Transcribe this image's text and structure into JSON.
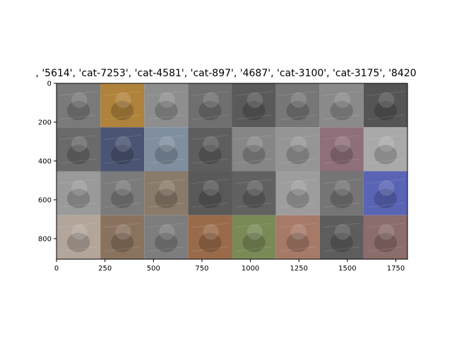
{
  "chart_data": {
    "type": "image_grid",
    "title": ", '5614', 'cat-7253', 'cat-4581', 'cat-897', '4687', 'cat-3100', 'cat-3175', '8420",
    "xlabel": "",
    "ylabel": "",
    "xlim": [
      0,
      1810
    ],
    "ylim": [
      906,
      0
    ],
    "xticks": [
      0,
      250,
      500,
      750,
      1000,
      1250,
      1500,
      1750
    ],
    "yticks": [
      0,
      200,
      400,
      600,
      800
    ],
    "grid": false,
    "rows": 4,
    "cols": 8,
    "tiles": [
      {
        "subject": "cat",
        "tone": "#7a7a7a"
      },
      {
        "subject": "cat",
        "tone": "#b0833c"
      },
      {
        "subject": "dog",
        "tone": "#8e8e8e"
      },
      {
        "subject": "cat",
        "tone": "#6f6f6f"
      },
      {
        "subject": "dog",
        "tone": "#5a5a5a"
      },
      {
        "subject": "cat",
        "tone": "#777777"
      },
      {
        "subject": "dog",
        "tone": "#8a8a8a"
      },
      {
        "subject": "cat",
        "tone": "#555555"
      },
      {
        "subject": "dog",
        "tone": "#6a6a6a"
      },
      {
        "subject": "dog",
        "tone": "#4b5573"
      },
      {
        "subject": "cat",
        "tone": "#7f8fa0"
      },
      {
        "subject": "dog",
        "tone": "#5e5e5e"
      },
      {
        "subject": "cat",
        "tone": "#868686"
      },
      {
        "subject": "cat",
        "tone": "#959595"
      },
      {
        "subject": "cat",
        "tone": "#8f6f7a"
      },
      {
        "subject": "cat",
        "tone": "#a9a9a9"
      },
      {
        "subject": "dog",
        "tone": "#9a9a9a"
      },
      {
        "subject": "cat",
        "tone": "#7b7b7b"
      },
      {
        "subject": "cat",
        "tone": "#8a7a69"
      },
      {
        "subject": "dog",
        "tone": "#595959"
      },
      {
        "subject": "dog",
        "tone": "#616161"
      },
      {
        "subject": "cat",
        "tone": "#9d9d9d"
      },
      {
        "subject": "dog",
        "tone": "#757575"
      },
      {
        "subject": "cat",
        "tone": "#5a64b5"
      },
      {
        "subject": "dog",
        "tone": "#b3a59a"
      },
      {
        "subject": "dog",
        "tone": "#8a735e"
      },
      {
        "subject": "dog",
        "tone": "#7d7d7d"
      },
      {
        "subject": "dog",
        "tone": "#9a6b4a"
      },
      {
        "subject": "dog",
        "tone": "#7a8a56"
      },
      {
        "subject": "cat",
        "tone": "#a77a68"
      },
      {
        "subject": "dog",
        "tone": "#5d5d5d"
      },
      {
        "subject": "cat",
        "tone": "#8b6d6b"
      }
    ]
  }
}
